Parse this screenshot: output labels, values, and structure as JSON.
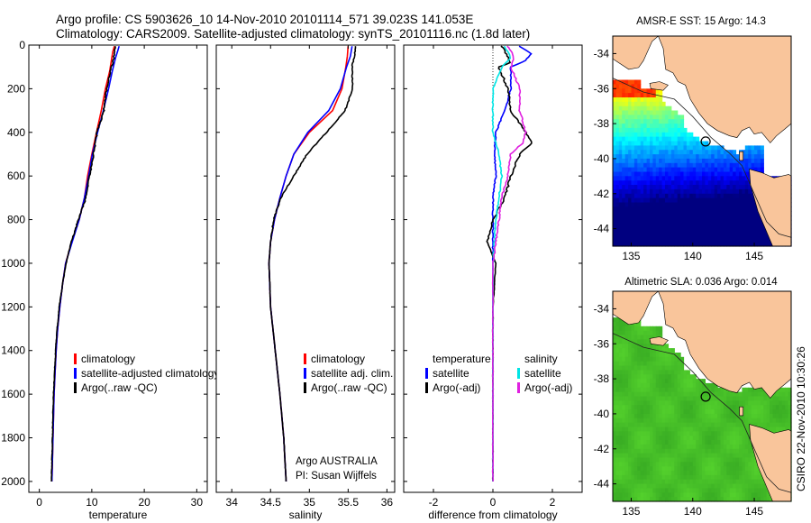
{
  "title_line1": "Argo profile: CS 5903626_10 14-Nov-2010 20101114_571 39.023S 141.053E",
  "title_line2": "Climatology: CARS2009. Satellite-adjusted climatology: synTS_20101116.nc (1.8d later)",
  "side_label": "CSIRO 22-Nov-2010 10:30:26",
  "colors": {
    "climatology": "#ff0000",
    "satellite": "#0000ff",
    "argo": "#000000",
    "cyan": "#00e5e5",
    "magenta": "#e020e0",
    "land": "#f9c59b"
  },
  "chart_data": [
    {
      "type": "line",
      "xlabel": "temperature",
      "xlim": [
        -2,
        32
      ],
      "ylim": [
        0,
        2050
      ],
      "xticks": [
        0,
        10,
        20,
        30
      ],
      "yticks": [
        0,
        200,
        400,
        600,
        800,
        1000,
        1200,
        1400,
        1600,
        1800,
        2000
      ],
      "y_reversed": true,
      "legend": [
        {
          "label": "climatology",
          "color": "#ff0000"
        },
        {
          "label": "satellite-adjusted climatology",
          "color": "#0000ff"
        },
        {
          "label": "Argo(..raw -QC)",
          "color": "#000000"
        }
      ],
      "series": [
        {
          "name": "climatology",
          "color": "#ff0000",
          "points": [
            [
              14.3,
              5
            ],
            [
              14.0,
              30
            ],
            [
              13.8,
              60
            ],
            [
              13.4,
              120
            ],
            [
              12.6,
              200
            ],
            [
              11.8,
              300
            ],
            [
              10.9,
              400
            ],
            [
              10.0,
              500
            ],
            [
              9.2,
              600
            ],
            [
              8.6,
              700
            ],
            [
              7.6,
              800
            ],
            [
              6.2,
              900
            ],
            [
              5.0,
              1000
            ],
            [
              4.4,
              1100
            ],
            [
              3.9,
              1200
            ],
            [
              3.5,
              1300
            ],
            [
              3.2,
              1400
            ],
            [
              3.0,
              1500
            ],
            [
              2.8,
              1600
            ],
            [
              2.7,
              1700
            ],
            [
              2.6,
              1800
            ],
            [
              2.5,
              1900
            ],
            [
              2.4,
              2000
            ]
          ]
        },
        {
          "name": "satellite-adjusted climatology",
          "color": "#0000ff",
          "points": [
            [
              15.2,
              5
            ],
            [
              14.9,
              30
            ],
            [
              14.5,
              60
            ],
            [
              13.9,
              120
            ],
            [
              13.2,
              200
            ],
            [
              12.2,
              300
            ],
            [
              11.1,
              400
            ],
            [
              10.1,
              500
            ],
            [
              9.4,
              600
            ],
            [
              8.6,
              700
            ],
            [
              7.6,
              800
            ],
            [
              6.3,
              900
            ],
            [
              5.0,
              1000
            ],
            [
              4.4,
              1100
            ],
            [
              3.9,
              1200
            ],
            [
              3.5,
              1300
            ],
            [
              3.2,
              1400
            ],
            [
              3.0,
              1500
            ],
            [
              2.8,
              1600
            ],
            [
              2.7,
              1700
            ],
            [
              2.6,
              1800
            ],
            [
              2.5,
              1900
            ],
            [
              2.4,
              2000
            ]
          ]
        },
        {
          "name": "Argo(..raw -QC)",
          "color": "#000000",
          "points": [
            [
              14.6,
              5
            ],
            [
              14.3,
              30
            ],
            [
              14.2,
              60
            ],
            [
              13.5,
              120
            ],
            [
              12.8,
              200
            ],
            [
              12.3,
              300
            ],
            [
              11.0,
              400
            ],
            [
              10.3,
              500
            ],
            [
              9.6,
              600
            ],
            [
              8.9,
              700
            ],
            [
              7.5,
              800
            ],
            [
              6.1,
              900
            ],
            [
              5.1,
              1000
            ],
            [
              4.4,
              1100
            ],
            [
              3.8,
              1200
            ],
            [
              3.4,
              1300
            ],
            [
              3.1,
              1400
            ],
            [
              2.9,
              1500
            ],
            [
              2.7,
              1600
            ],
            [
              2.6,
              1700
            ],
            [
              2.5,
              1800
            ],
            [
              2.4,
              1900
            ],
            [
              2.3,
              2000
            ]
          ]
        }
      ]
    },
    {
      "type": "line",
      "xlabel": "salinity",
      "xlim": [
        33.8,
        36.1
      ],
      "ylim": [
        0,
        2050
      ],
      "xticks": [
        34,
        34.5,
        35,
        35.5,
        36
      ],
      "y_reversed": true,
      "legend": [
        {
          "label": "climatology",
          "color": "#ff0000"
        },
        {
          "label": "satellite adj. clim.",
          "color": "#0000ff"
        },
        {
          "label": "Argo(..raw -QC)",
          "color": "#000000"
        }
      ],
      "annotation": [
        "Argo AUSTRALIA",
        "PI: Susan Wijffels"
      ],
      "series": [
        {
          "name": "climatology",
          "color": "#ff0000",
          "points": [
            [
              35.5,
              5
            ],
            [
              35.49,
              50
            ],
            [
              35.47,
              100
            ],
            [
              35.42,
              200
            ],
            [
              35.3,
              300
            ],
            [
              35.0,
              400
            ],
            [
              34.8,
              500
            ],
            [
              34.7,
              600
            ],
            [
              34.62,
              700
            ],
            [
              34.55,
              800
            ],
            [
              34.5,
              900
            ],
            [
              34.48,
              1000
            ],
            [
              34.5,
              1200
            ],
            [
              34.56,
              1400
            ],
            [
              34.62,
              1600
            ],
            [
              34.67,
              1800
            ],
            [
              34.7,
              2000
            ]
          ]
        },
        {
          "name": "satellite adj. clim.",
          "color": "#0000ff",
          "points": [
            [
              35.55,
              5
            ],
            [
              35.53,
              50
            ],
            [
              35.48,
              100
            ],
            [
              35.4,
              200
            ],
            [
              35.25,
              300
            ],
            [
              34.98,
              400
            ],
            [
              34.8,
              500
            ],
            [
              34.7,
              600
            ],
            [
              34.62,
              700
            ],
            [
              34.55,
              800
            ],
            [
              34.5,
              900
            ],
            [
              34.48,
              1000
            ],
            [
              34.5,
              1200
            ],
            [
              34.56,
              1400
            ],
            [
              34.62,
              1600
            ],
            [
              34.67,
              1800
            ],
            [
              34.7,
              2000
            ]
          ]
        },
        {
          "name": "Argo(..raw -QC)",
          "color": "#000000",
          "points": [
            [
              35.6,
              5
            ],
            [
              35.58,
              50
            ],
            [
              35.55,
              100
            ],
            [
              35.56,
              200
            ],
            [
              35.46,
              300
            ],
            [
              35.22,
              400
            ],
            [
              34.97,
              500
            ],
            [
              34.8,
              600
            ],
            [
              34.63,
              700
            ],
            [
              34.54,
              800
            ],
            [
              34.5,
              900
            ],
            [
              34.48,
              1000
            ],
            [
              34.5,
              1200
            ],
            [
              34.56,
              1400
            ],
            [
              34.62,
              1600
            ],
            [
              34.67,
              1800
            ],
            [
              34.7,
              2000
            ]
          ]
        }
      ]
    },
    {
      "type": "line",
      "xlabel": "difference from climatology",
      "xlim": [
        -3,
        3
      ],
      "ylim": [
        0,
        2050
      ],
      "xticks": [
        -2,
        0,
        2
      ],
      "y_reversed": true,
      "legend_left": [
        {
          "label": "temperature",
          "color": ""
        },
        {
          "label": "satellite",
          "color": "#0000ff"
        },
        {
          "label": "Argo(-adj)",
          "color": "#000000"
        }
      ],
      "legend_right": [
        {
          "label": "salinity",
          "color": ""
        },
        {
          "label": "satellite",
          "color": "#00e5e5"
        },
        {
          "label": "Argo(-adj)",
          "color": "#e020e0"
        }
      ],
      "series": [
        {
          "name": "temperature satellite",
          "color": "#0000ff",
          "points": [
            [
              0.9,
              5
            ],
            [
              1.3,
              40
            ],
            [
              1.1,
              70
            ],
            [
              0.6,
              100
            ],
            [
              0.6,
              200
            ],
            [
              0.4,
              300
            ],
            [
              0.1,
              400
            ],
            [
              0.05,
              500
            ],
            [
              0.1,
              600
            ],
            [
              0.0,
              700
            ],
            [
              0.0,
              800
            ],
            [
              0.0,
              1000
            ],
            [
              0.0,
              2000
            ]
          ]
        },
        {
          "name": "temperature Argo(-adj)",
          "color": "#000000",
          "points": [
            [
              0.3,
              5
            ],
            [
              0.5,
              50
            ],
            [
              0.6,
              80
            ],
            [
              0.2,
              100
            ],
            [
              0.5,
              200
            ],
            [
              0.6,
              300
            ],
            [
              1.1,
              400
            ],
            [
              1.3,
              450
            ],
            [
              0.9,
              500
            ],
            [
              0.6,
              600
            ],
            [
              0.4,
              700
            ],
            [
              0.0,
              800
            ],
            [
              -0.2,
              900
            ],
            [
              0.1,
              1000
            ],
            [
              0.0,
              1200
            ],
            [
              0.0,
              1400
            ],
            [
              0.0,
              2000
            ]
          ]
        },
        {
          "name": "salinity satellite",
          "color": "#00e5e5",
          "points": [
            [
              0.4,
              5
            ],
            [
              0.6,
              60
            ],
            [
              0.3,
              100
            ],
            [
              0.0,
              200
            ],
            [
              0.0,
              300
            ],
            [
              0.0,
              400
            ],
            [
              0.2,
              500
            ],
            [
              0.3,
              600
            ],
            [
              0.2,
              700
            ],
            [
              0.1,
              800
            ],
            [
              0.0,
              1000
            ],
            [
              0.0,
              2000
            ]
          ]
        },
        {
          "name": "salinity Argo(-adj)",
          "color": "#e020e0",
          "points": [
            [
              0.5,
              5
            ],
            [
              0.7,
              50
            ],
            [
              0.6,
              100
            ],
            [
              0.9,
              200
            ],
            [
              0.9,
              300
            ],
            [
              1.1,
              400
            ],
            [
              1.0,
              450
            ],
            [
              0.6,
              500
            ],
            [
              0.5,
              600
            ],
            [
              0.3,
              700
            ],
            [
              0.2,
              800
            ],
            [
              0.0,
              1000
            ],
            [
              0.0,
              2000
            ]
          ]
        }
      ]
    },
    {
      "type": "heatmap",
      "title": "AMSR-E SST: 15 Argo: 14.3",
      "xlim": [
        133.5,
        148
      ],
      "ylim": [
        -45,
        -33
      ],
      "xticks": [
        135,
        140,
        145
      ],
      "yticks": [
        -34,
        -36,
        -38,
        -40,
        -42,
        -44
      ],
      "marker": [
        141.053,
        -39.023
      ]
    },
    {
      "type": "heatmap",
      "title": "Altimetric SLA: 0.036 Argo: 0.014",
      "xlim": [
        133.5,
        148
      ],
      "ylim": [
        -45,
        -33
      ],
      "xticks": [
        135,
        140,
        145
      ],
      "yticks": [
        -34,
        -36,
        -38,
        -40,
        -42,
        -44
      ],
      "marker": [
        141.053,
        -39.023
      ]
    }
  ]
}
